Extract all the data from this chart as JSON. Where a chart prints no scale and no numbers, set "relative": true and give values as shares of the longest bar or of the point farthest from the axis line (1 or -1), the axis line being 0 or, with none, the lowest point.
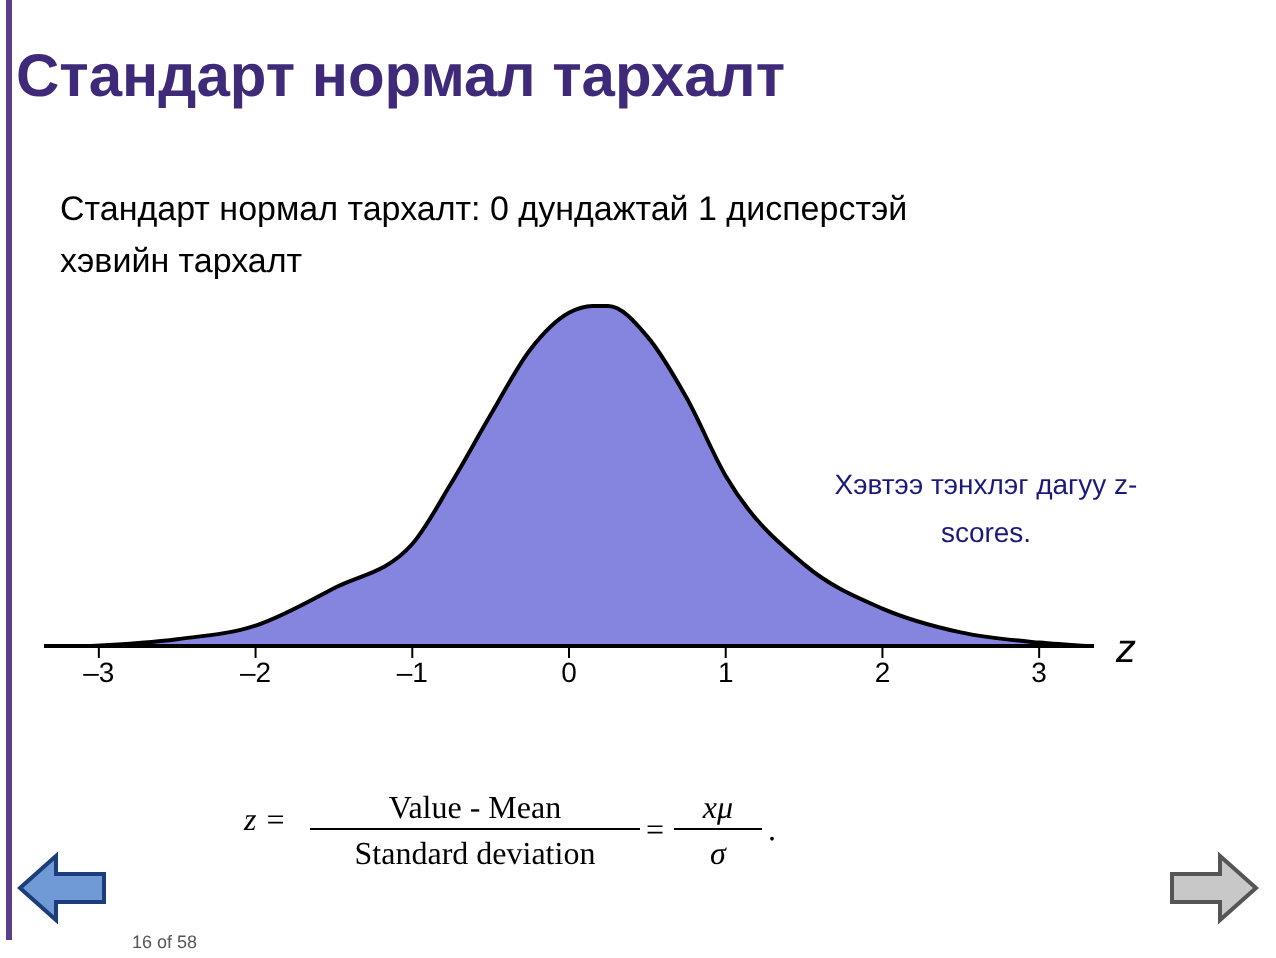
{
  "chart_data": {
    "type": "area",
    "title": "Стандарт нормал тархалт",
    "subtitle": "Стандарт нормал тархалт: 0 дундажтай 1 дисперстэй хэвийн тархалт",
    "xlabel": "z",
    "relative": true,
    "x": [
      -3.05,
      -2.5,
      -2,
      -1.5,
      -1,
      -0.75,
      -0.5,
      -0.25,
      0,
      0.15,
      0.25,
      0.5,
      0.75,
      1,
      1.5,
      2,
      2.5,
      3,
      3.3
    ],
    "series": [
      {
        "color": "#8585e0",
        "values": [
          0,
          0.02,
          0.06,
          0.17,
          0.3,
          0.48,
          0.68,
          0.87,
          0.98,
          1,
          1,
          0.91,
          0.73,
          0.5,
          0.24,
          0.11,
          0.04,
          0.01,
          0
        ]
      }
    ],
    "xlim": [
      -3.35,
      3.35
    ],
    "xticks": [
      {
        "value": -3,
        "label": "–3"
      },
      {
        "value": -2,
        "label": "–2"
      },
      {
        "value": -1,
        "label": "–1"
      },
      0,
      1,
      2,
      3
    ],
    "annotations": [
      "Хэвтээ тэнхлэг дагуу z-scores.",
      "z =",
      "Value - Mean",
      "Standard deviation",
      "=",
      "xμ",
      "σ",
      ".",
      "16 of 58"
    ]
  }
}
